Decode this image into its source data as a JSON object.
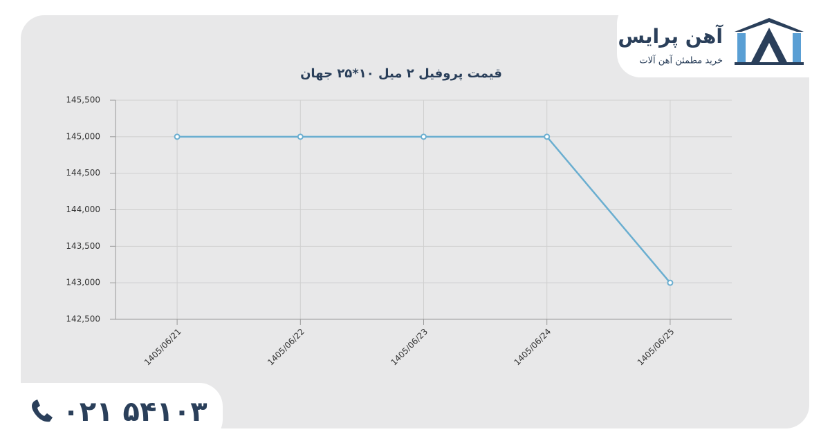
{
  "brand": {
    "name": "آهن پرایس",
    "tagline": "خرید مطمئن آهن آلات",
    "phone": "۰۲۱ ۵۴۱۰۳"
  },
  "chart_data": {
    "type": "line",
    "title": "قیمت پروفیل ۲ میل ۱۰*۲۵ جهان",
    "categories": [
      "1405/06/21",
      "1405/06/22",
      "1405/06/23",
      "1405/06/24",
      "1405/06/25"
    ],
    "values": [
      145000,
      145000,
      145000,
      145000,
      143000
    ],
    "color": "#6aaed0",
    "ylim": [
      142500,
      145500
    ],
    "yticks": [
      {
        "value": 142500,
        "label": "142,500"
      },
      {
        "value": 143000,
        "label": "143,000"
      },
      {
        "value": 143500,
        "label": "143,500"
      },
      {
        "value": 144000,
        "label": "144,000"
      },
      {
        "value": 144500,
        "label": "144,500"
      },
      {
        "value": 145000,
        "label": "145,000"
      },
      {
        "value": 145500,
        "label": "145,500"
      }
    ],
    "grid": true
  }
}
